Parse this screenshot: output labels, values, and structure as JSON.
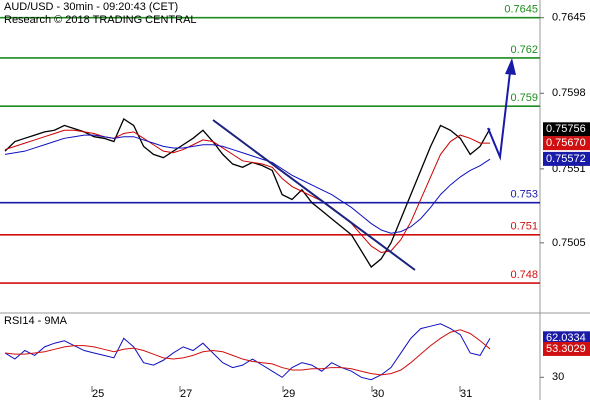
{
  "chart_data": [
    {
      "type": "line",
      "title": "AUD/USD - 30min - 09:20:43 (CET)",
      "subtitle": "Research © 2018 TRADING CENTRAL",
      "ylim": [
        0.7462,
        0.7656
      ],
      "yticks": [
        0.7645,
        0.7598,
        0.7551,
        0.7505
      ],
      "x_labels": [
        "25",
        "27",
        "29",
        "30",
        "31"
      ],
      "series": [
        {
          "color": "#000000",
          "values": [
            0.7562,
            0.7568,
            0.757,
            0.7572,
            0.7574,
            0.7575,
            0.7578,
            0.7576,
            0.7574,
            0.7571,
            0.757,
            0.7568,
            0.7582,
            0.7578,
            0.7565,
            0.756,
            0.7558,
            0.7562,
            0.7566,
            0.757,
            0.7575,
            0.7568,
            0.756,
            0.7554,
            0.7552,
            0.7555,
            0.7553,
            0.755,
            0.7535,
            0.7532,
            0.7538,
            0.753,
            0.7525,
            0.752,
            0.7515,
            0.751,
            0.75,
            0.749,
            0.7495,
            0.7505,
            0.752,
            0.7535,
            0.755,
            0.7565,
            0.7578,
            0.7575,
            0.757,
            0.756,
            0.7565,
            0.7576
          ]
        },
        {
          "color": "#cc0000",
          "values": [
            0.7563,
            0.7565,
            0.7567,
            0.7569,
            0.7571,
            0.7573,
            0.7575,
            0.7575,
            0.7574,
            0.7573,
            0.7571,
            0.757,
            0.7573,
            0.7574,
            0.757,
            0.7566,
            0.7562,
            0.7561,
            0.7563,
            0.7566,
            0.7569,
            0.7568,
            0.7564,
            0.756,
            0.7556,
            0.7555,
            0.7554,
            0.7552,
            0.7545,
            0.754,
            0.7537,
            0.7534,
            0.7531,
            0.7527,
            0.7522,
            0.7517,
            0.751,
            0.7503,
            0.7499,
            0.75,
            0.7507,
            0.7518,
            0.7532,
            0.7546,
            0.756,
            0.7568,
            0.7572,
            0.757,
            0.7567,
            0.7567
          ]
        },
        {
          "color": "#1010c0",
          "values": [
            0.756,
            0.7561,
            0.7562,
            0.7564,
            0.7566,
            0.7568,
            0.757,
            0.7571,
            0.7572,
            0.7572,
            0.7571,
            0.757,
            0.7571,
            0.7571,
            0.7569,
            0.7567,
            0.7565,
            0.7564,
            0.7564,
            0.7565,
            0.7566,
            0.7566,
            0.7565,
            0.7563,
            0.7561,
            0.7559,
            0.7557,
            0.7555,
            0.7551,
            0.7547,
            0.7544,
            0.7541,
            0.7538,
            0.7535,
            0.7531,
            0.7527,
            0.7522,
            0.7517,
            0.7513,
            0.7511,
            0.7512,
            0.7515,
            0.752,
            0.7527,
            0.7535,
            0.7541,
            0.7546,
            0.755,
            0.7553,
            0.7557
          ]
        }
      ],
      "levels": [
        {
          "value": 0.7645,
          "color": "#1e8c1e"
        },
        {
          "value": 0.762,
          "color": "#1e8c1e"
        },
        {
          "value": 0.759,
          "color": "#1e8c1e"
        },
        {
          "value": 0.753,
          "color": "#1a1aa8"
        },
        {
          "value": 0.751,
          "color": "#d01010"
        },
        {
          "value": 0.748,
          "color": "#d01010"
        }
      ],
      "last_values": [
        {
          "value": 0.75756,
          "label": "0.75756",
          "color": "#000000"
        },
        {
          "value": 0.7567,
          "label": "0.75670",
          "color": "#d01010"
        },
        {
          "value": 0.75572,
          "label": "0.75572",
          "color": "#1a1aa8"
        }
      ]
    },
    {
      "type": "line",
      "title": "RSI14 - 9MA",
      "ylim": [
        13,
        82
      ],
      "yticks": [
        30
      ],
      "series": [
        {
          "color": "#1010c0",
          "values": [
            50,
            45,
            52,
            48,
            55,
            58,
            60,
            56,
            52,
            50,
            48,
            46,
            62,
            55,
            42,
            40,
            44,
            50,
            55,
            52,
            58,
            50,
            42,
            38,
            40,
            45,
            40,
            35,
            30,
            38,
            42,
            40,
            35,
            42,
            38,
            35,
            30,
            28,
            32,
            38,
            50,
            62,
            70,
            72,
            74,
            70,
            65,
            50,
            48,
            62
          ]
        },
        {
          "color": "#d01010",
          "values": [
            50,
            49,
            49,
            50,
            51,
            53,
            55,
            56,
            56,
            55,
            53,
            51,
            53,
            54,
            52,
            49,
            46,
            45,
            46,
            48,
            51,
            52,
            51,
            48,
            45,
            43,
            42,
            41,
            38,
            36,
            36,
            37,
            37,
            38,
            38,
            37,
            35,
            33,
            32,
            33,
            36,
            42,
            49,
            56,
            62,
            67,
            69,
            66,
            60,
            53.3
          ]
        }
      ],
      "last_values": [
        {
          "value": 62.0334,
          "color": "#1a1aa8"
        },
        {
          "value": 53.3029,
          "color": "#d01010"
        }
      ]
    }
  ]
}
